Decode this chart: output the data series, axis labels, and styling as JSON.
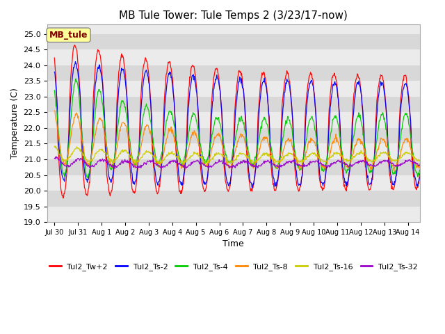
{
  "title": "MB Tule Tower: Tule Temps 2 (3/23/17-now)",
  "xlabel": "Time",
  "ylabel": "Temperature (C)",
  "ylim": [
    19.0,
    25.3
  ],
  "yticks": [
    19.0,
    19.5,
    20.0,
    20.5,
    21.0,
    21.5,
    22.0,
    22.5,
    23.0,
    23.5,
    24.0,
    24.5,
    25.0
  ],
  "x_tick_labels": [
    "Jul 30",
    "Jul 31",
    "Aug 1",
    "Aug 2",
    "Aug 3",
    "Aug 4",
    "Aug 5",
    "Aug 6",
    "Aug 7",
    "Aug 8",
    "Aug 9",
    "Aug 10",
    "Aug 11",
    "Aug 12",
    "Aug 13",
    "Aug 14"
  ],
  "legend_label": "MB_tule",
  "legend_box_color": "#ffff99",
  "legend_text_color": "#800000",
  "lines": [
    {
      "name": "Tul2_Tw+2",
      "color": "#ff0000"
    },
    {
      "name": "Tul2_Ts-2",
      "color": "#0000ff"
    },
    {
      "name": "Tul2_Ts-4",
      "color": "#00cc00"
    },
    {
      "name": "Tul2_Ts-8",
      "color": "#ff8800"
    },
    {
      "name": "Tul2_Ts-16",
      "color": "#cccc00"
    },
    {
      "name": "Tul2_Ts-32",
      "color": "#9900cc"
    }
  ],
  "background_color": "#ffffff",
  "plot_background_light": "#ebebeb",
  "plot_background_dark": "#d8d8d8"
}
